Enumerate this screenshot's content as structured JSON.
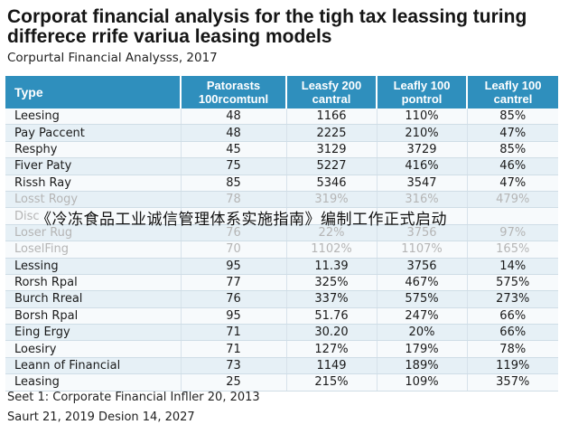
{
  "title_line1": "Corporat financial analysis for the tigh tax leassing turing",
  "title_line2": "differece rrife variua leasing models",
  "subtitle": "Corpurtal Financial Analysss, 2017",
  "table": {
    "headers": [
      "Type",
      "Patorasts 100rcomtunl",
      "Leasfy 200 cantral",
      "Leafly 100 pontrol",
      "Leafly 100 cantrel"
    ],
    "rows": [
      [
        "Leesing",
        "48",
        "1166",
        "110%",
        "85%"
      ],
      [
        "Pay Paccent",
        "48",
        "2225",
        "210%",
        "47%"
      ],
      [
        "Resphy",
        "45",
        "3129",
        "3729",
        "85%"
      ],
      [
        "Fiver Paty",
        "75",
        "5227",
        "416%",
        "46%"
      ],
      [
        "Rissh Ray",
        "85",
        "5346",
        "3547",
        "47%"
      ],
      [
        "Losst Rogy",
        "78",
        "319%",
        "316%",
        "479%"
      ],
      [
        "Disc",
        "",
        "",
        "",
        ""
      ],
      [
        "Loser Rug",
        "76",
        "22%",
        "3756",
        "97%"
      ],
      [
        "LoselFing",
        "70",
        "1102%",
        "1107%",
        "165%"
      ],
      [
        "Lessing",
        "95",
        "11.39",
        "3756",
        "14%"
      ],
      [
        "Rorsh Rpal",
        "77",
        "325%",
        "467%",
        "575%"
      ],
      [
        "Burch Rreal",
        "76",
        "337%",
        "575%",
        "273%"
      ],
      [
        "Borsh Rpal",
        "95",
        "51.76",
        "247%",
        "66%"
      ],
      [
        "Eing Ergy",
        "71",
        "30.20",
        "20%",
        "66%"
      ],
      [
        "Loesiry",
        "71",
        "127%",
        "179%",
        "78%"
      ],
      [
        "Leann of Financial",
        "73",
        "1149",
        "189%",
        "119%"
      ],
      [
        "Leasing",
        "25",
        "215%",
        "109%",
        "357%"
      ]
    ]
  },
  "overlay_text": "《冷冻食品工业诚信管理体系实施指南》编制工作正式启动",
  "footnote1": "Seet 1: Corporate Financial Infller 20, 2013",
  "footnote2": "Saurt 21, 2019 Desion 14, 2027"
}
